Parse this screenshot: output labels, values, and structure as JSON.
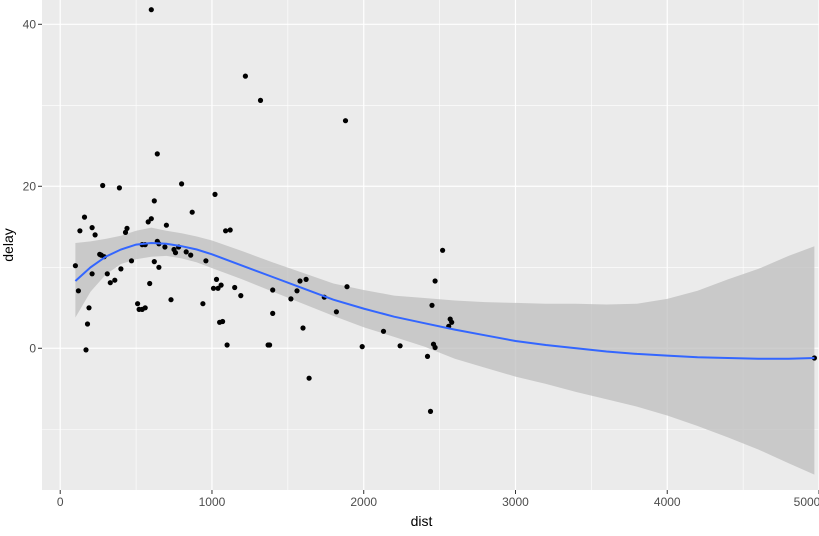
{
  "chart_data": {
    "type": "scatter",
    "title": "",
    "xlabel": "dist",
    "ylabel": "delay",
    "xlim": [
      -120,
      5000
    ],
    "ylim": [
      -17.5,
      43
    ],
    "x_ticks": [
      0,
      1000,
      2000,
      3000,
      4000,
      5000
    ],
    "y_ticks": [
      0,
      20,
      40
    ],
    "x_tick_labels": [
      "0",
      "1000",
      "2000",
      "3000",
      "4000",
      "5000"
    ],
    "y_tick_labels": [
      "0",
      "20",
      "40"
    ],
    "grid": true,
    "legend": "none",
    "colors": {
      "panel": "#ebebeb",
      "grid": "#ffffff",
      "point": "#000000",
      "smooth_line": "#3366ff",
      "ribbon": "#bebebe"
    },
    "series": [
      {
        "kind": "points",
        "x": [
          600,
          1220,
          1320,
          1880,
          640,
          280,
          390,
          800,
          1020,
          870,
          160,
          130,
          210,
          230,
          600,
          580,
          700,
          1120,
          1090,
          440,
          430,
          470,
          640,
          540,
          560,
          690,
          760,
          830,
          260,
          270,
          290,
          310,
          620,
          780,
          860,
          960,
          650,
          750,
          620,
          650,
          100,
          400,
          1580,
          1620,
          1400,
          1190,
          1150,
          1060,
          1040,
          1010,
          1030,
          360,
          330,
          590,
          560,
          510,
          520,
          540,
          730,
          940,
          1520,
          1560,
          1740,
          1820,
          1890,
          2520,
          2470,
          2570,
          2580,
          2560,
          2450,
          1380,
          1400,
          120,
          180,
          190,
          210,
          1050,
          1070,
          1100,
          1370,
          1600,
          1990,
          2130,
          2240,
          2420,
          2460,
          2470,
          1640,
          2440,
          170,
          4970
        ],
        "y": [
          41.8,
          33.6,
          30.6,
          28.1,
          24.0,
          20.1,
          19.8,
          20.3,
          19.0,
          16.8,
          16.2,
          14.5,
          14.9,
          14.0,
          16.0,
          15.6,
          15.2,
          14.6,
          14.5,
          14.8,
          14.3,
          10.8,
          13.2,
          12.8,
          12.8,
          12.5,
          11.8,
          11.9,
          11.6,
          11.5,
          11.3,
          9.2,
          10.7,
          12.5,
          11.5,
          10.8,
          10.0,
          12.2,
          18.2,
          12.9,
          10.2,
          9.8,
          8.3,
          8.5,
          7.2,
          6.5,
          7.5,
          7.8,
          7.4,
          7.4,
          8.5,
          8.4,
          8.1,
          8.0,
          5.0,
          5.5,
          4.8,
          4.8,
          6.0,
          5.5,
          6.1,
          7.1,
          6.3,
          4.5,
          7.6,
          12.1,
          8.3,
          3.6,
          3.2,
          2.7,
          5.3,
          0.4,
          4.3,
          7.1,
          3.0,
          5.0,
          9.2,
          3.2,
          3.3,
          0.4,
          0.4,
          2.5,
          0.2,
          2.1,
          0.3,
          -1.0,
          0.5,
          0.1,
          -3.7,
          -7.8,
          -0.2,
          -1.2
        ]
      },
      {
        "kind": "smooth",
        "x": [
          100,
          200,
          300,
          400,
          500,
          600,
          700,
          800,
          900,
          1000,
          1200,
          1400,
          1600,
          1800,
          2000,
          2200,
          2400,
          2600,
          2800,
          3000,
          3200,
          3400,
          3600,
          3800,
          4000,
          4200,
          4400,
          4600,
          4800,
          4970
        ],
        "y": [
          8.3,
          10.0,
          11.3,
          12.2,
          12.8,
          13.0,
          12.9,
          12.6,
          12.2,
          11.6,
          10.2,
          8.8,
          7.4,
          6.0,
          4.9,
          3.9,
          3.1,
          2.3,
          1.6,
          0.9,
          0.4,
          0.0,
          -0.4,
          -0.7,
          -0.9,
          -1.1,
          -1.2,
          -1.3,
          -1.3,
          -1.2
        ],
        "ymin": [
          3.8,
          7.0,
          9.1,
          10.4,
          11.0,
          11.3,
          11.4,
          11.1,
          10.6,
          9.9,
          8.5,
          7.0,
          5.5,
          4.0,
          2.6,
          1.4,
          0.2,
          -1.3,
          -2.4,
          -3.5,
          -4.4,
          -5.4,
          -6.3,
          -7.2,
          -8.3,
          -9.6,
          -11.0,
          -12.5,
          -14.2,
          -15.6
        ],
        "ymax": [
          13.0,
          13.2,
          13.5,
          13.9,
          14.5,
          14.9,
          14.5,
          14.2,
          13.8,
          13.3,
          12.0,
          10.6,
          9.3,
          8.0,
          7.2,
          6.5,
          6.2,
          5.9,
          5.7,
          5.6,
          5.5,
          5.5,
          5.4,
          5.5,
          6.1,
          7.1,
          8.5,
          9.8,
          11.4,
          12.6
        ]
      }
    ]
  }
}
